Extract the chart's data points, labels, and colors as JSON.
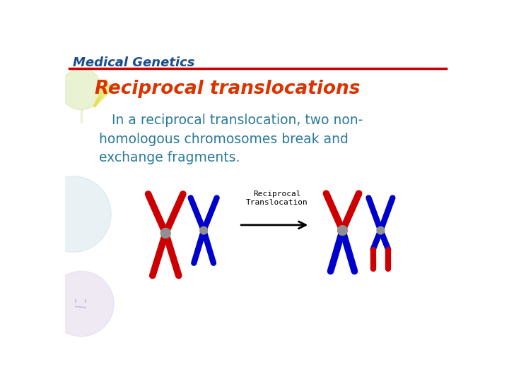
{
  "header_text": "Medical Genetics",
  "header_color": "#1a4d8f",
  "header_line_color": "#cc0000",
  "title_text": "Reciprocal translocations",
  "title_color": "#dd3300",
  "body_text": "    In a reciprocal translocation, two non-\n homologous chromosomes break and\n exchange fragments.",
  "body_color": "#2a7a9a",
  "bg_color": "#ffffff",
  "arrow_label_line1": "Reciprocal",
  "arrow_label_line2": "Translocation",
  "red_color": "#cc0000",
  "blue_color": "#0000cc",
  "gray_color": "#888888"
}
